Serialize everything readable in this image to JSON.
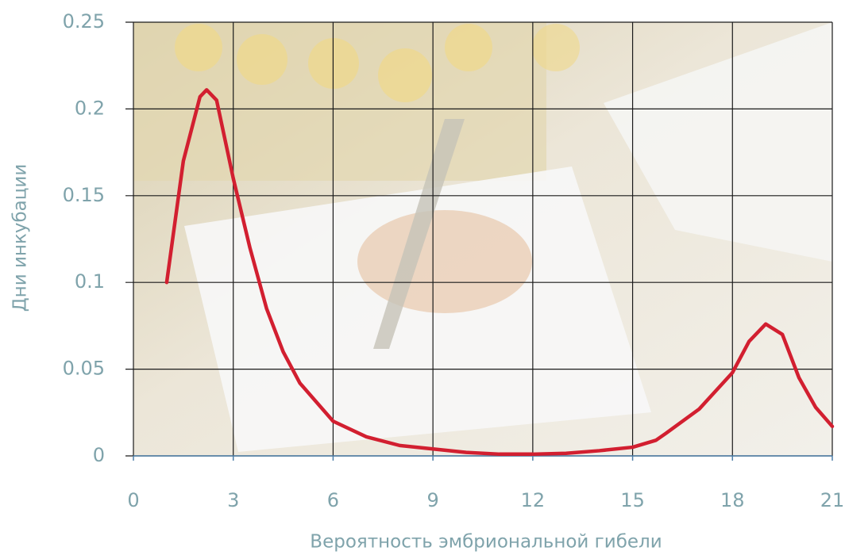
{
  "chart_data": {
    "type": "line",
    "x_label": "Вероятность эмбриональной гибели",
    "y_label": "Дни инкубации",
    "x": [
      1,
      1.5,
      2,
      2.2,
      2.5,
      3,
      3.5,
      4,
      4.5,
      5,
      6,
      7,
      8,
      9,
      10,
      11,
      12,
      13,
      14,
      15,
      15.7,
      16,
      17,
      18,
      18.5,
      19,
      19.5,
      20,
      20.5,
      21
    ],
    "series": [
      {
        "name": "Вероятность",
        "color": "#d21f30",
        "values": [
          0.1,
          0.17,
          0.207,
          0.211,
          0.205,
          0.16,
          0.12,
          0.085,
          0.06,
          0.042,
          0.02,
          0.011,
          0.006,
          0.004,
          0.002,
          0.001,
          0.001,
          0.0015,
          0.003,
          0.005,
          0.009,
          0.013,
          0.027,
          0.048,
          0.066,
          0.076,
          0.07,
          0.045,
          0.028,
          0.017
        ]
      }
    ],
    "xlim": [
      0,
      21
    ],
    "xticks": [
      0,
      3,
      6,
      9,
      12,
      15,
      18,
      21
    ],
    "ylim": [
      0,
      0.25
    ],
    "yticks": [
      0,
      0.05,
      0.1,
      0.15,
      0.2,
      0.25
    ],
    "grid": true
  }
}
